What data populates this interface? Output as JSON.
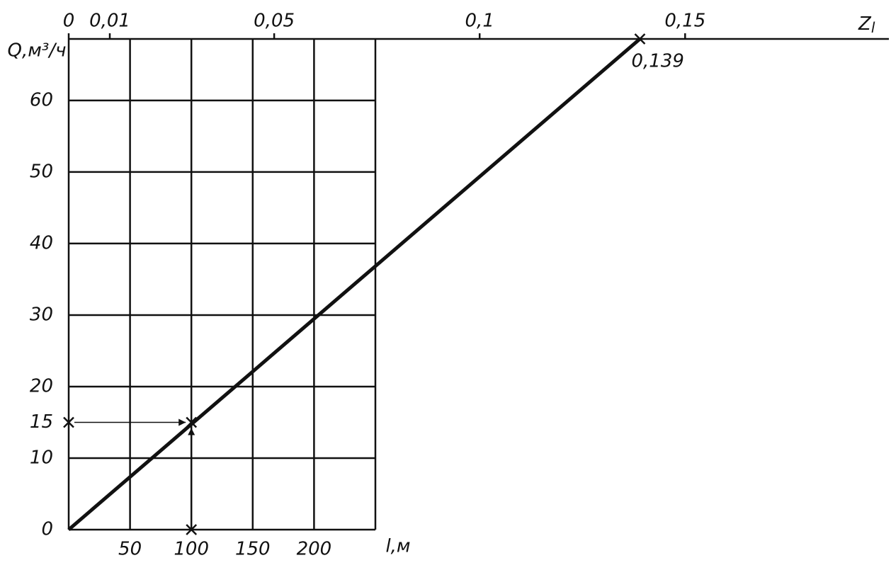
{
  "chart_data": {
    "type": "nomogram",
    "y_label": "Q,м³/ч",
    "x_label": "l,м",
    "z_label": "Z",
    "z_label_sub": "l",
    "ylim": [
      0,
      68.6
    ],
    "yticks": [
      0,
      10,
      20,
      30,
      40,
      50,
      60
    ],
    "xlim": [
      0,
      250
    ],
    "xticks": [
      50,
      100,
      150,
      200
    ],
    "zlim": [
      0,
      0.197
    ],
    "zticks": [
      0,
      {
        "value": 0.01,
        "label": "0,01"
      },
      {
        "value": 0.05,
        "label": "0,05"
      },
      {
        "value": 0.1,
        "label": "0,1"
      },
      {
        "value": 0.15,
        "label": "0,15"
      }
    ],
    "grid": true,
    "color": "#111111",
    "example": {
      "q": 15,
      "l": 100,
      "z": 0.139,
      "z_label": "0,139"
    }
  }
}
